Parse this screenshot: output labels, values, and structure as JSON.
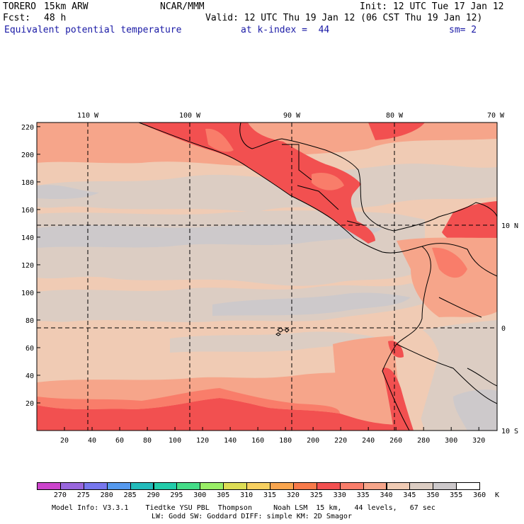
{
  "header": {
    "model_name": "TORERO",
    "resolution": "15km ARW",
    "org": "NCAR/MMM",
    "init": "Init: 12 UTC Tue 17 Jan 12",
    "fcst_label": "Fcst:",
    "fcst_hours": "48 h",
    "valid": "Valid: 12 UTC Thu 19 Jan 12 (06 CST Thu 19 Jan 12)",
    "field": "Equivalent potential temperature",
    "level": "at k-index =  44",
    "smoothing": "sm= 2"
  },
  "map": {
    "top_lon_labels": [
      "110 W",
      "100 W",
      "90 W",
      "80 W",
      "70 W"
    ],
    "right_lat_labels": [
      "10 N",
      "0",
      "10 S"
    ],
    "y_grid_labels": [
      "220",
      "200",
      "180",
      "160",
      "140",
      "120",
      "100",
      "80",
      "60",
      "40",
      "20"
    ],
    "x_grid_labels": [
      "20",
      "40",
      "60",
      "80",
      "100",
      "120",
      "140",
      "160",
      "180",
      "200",
      "220",
      "240",
      "260",
      "280",
      "300",
      "320"
    ],
    "colors": {
      "c330": "#f25050",
      "c335": "#f97d6a",
      "c340": "#f6a58a",
      "c345": "#f0cbb4",
      "c350": "#dccdc3",
      "c355": "#cdc9cb",
      "c360": "#ffffff"
    }
  },
  "legend": {
    "colors": [
      "#cc44cc",
      "#9966dd",
      "#7777ee",
      "#5599ee",
      "#22bbbb",
      "#22ccaa",
      "#44dd88",
      "#99ee66",
      "#dddd55",
      "#f7d060",
      "#f9a54e",
      "#f77a4a",
      "#f25050",
      "#f97d6a",
      "#f6a58a",
      "#f0cbb4",
      "#dccdc3",
      "#cdc9cb",
      "#ffffff"
    ],
    "labels": [
      "270",
      "275",
      "280",
      "285",
      "290",
      "295",
      "300",
      "305",
      "310",
      "315",
      "320",
      "325",
      "330",
      "335",
      "340",
      "345",
      "350",
      "355",
      "360"
    ],
    "unit": "K"
  },
  "footer": {
    "line1": "Model Info: V3.3.1    Tiedtke YSU PBL  Thompson     Noah LSM  15 km,   44 levels,   67 sec",
    "line2": "LW: Godd SW: Goddard DIFF: simple KM: 2D Smagor"
  }
}
